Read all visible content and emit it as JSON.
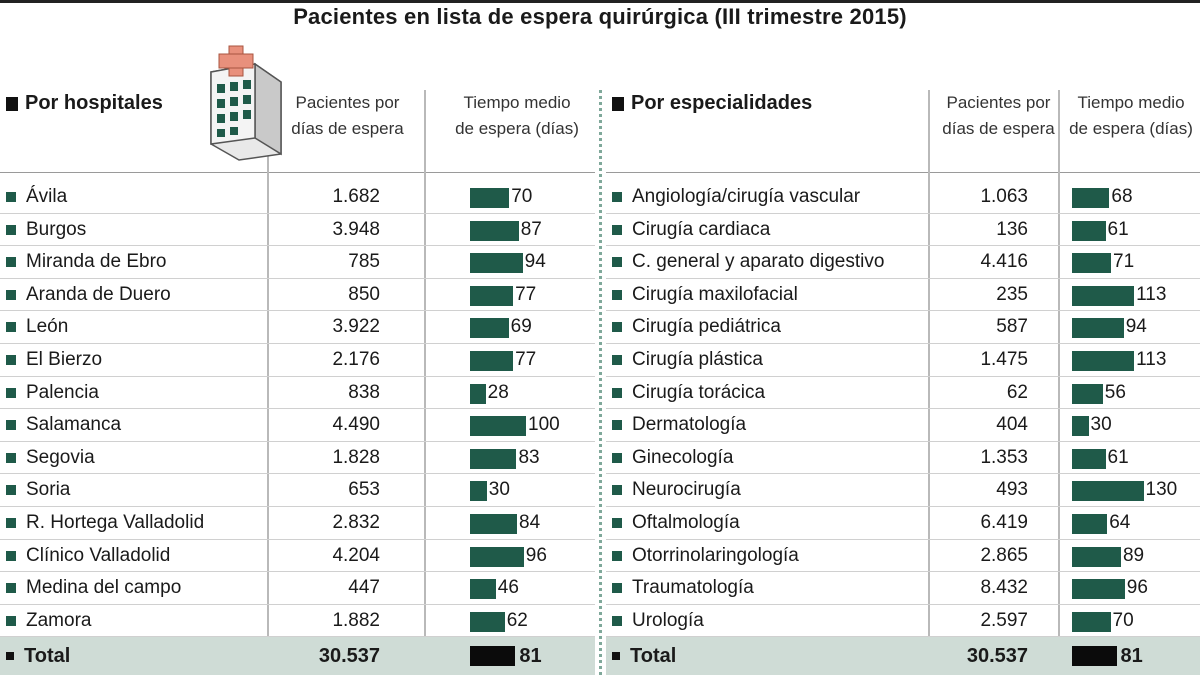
{
  "title": "Pacientes en lista de espera quirúrgica (III trimestre 2015)",
  "colors": {
    "bar": "#1f5a49",
    "total_bar": "#0b0b0b",
    "total_bg": "#cfdcd6",
    "divider": "#7fa89a"
  },
  "icons": {
    "hospital": "hospital-building-icon"
  },
  "chart_data": [
    {
      "type": "table",
      "section_label": "Por hospitales",
      "col_patients": "Pacientes por días de espera",
      "col_wait": "Tiempo medio de espera (días)",
      "rows": [
        {
          "name": "Ávila",
          "patients": "1.682",
          "wait": 70
        },
        {
          "name": "Burgos",
          "patients": "3.948",
          "wait": 87
        },
        {
          "name": "Miranda de Ebro",
          "patients": "785",
          "wait": 94
        },
        {
          "name": "Aranda de Duero",
          "patients": "850",
          "wait": 77
        },
        {
          "name": "León",
          "patients": "3.922",
          "wait": 69
        },
        {
          "name": "El Bierzo",
          "patients": "2.176",
          "wait": 77
        },
        {
          "name": "Palencia",
          "patients": "838",
          "wait": 28
        },
        {
          "name": "Salamanca",
          "patients": "4.490",
          "wait": 100
        },
        {
          "name": "Segovia",
          "patients": "1.828",
          "wait": 83
        },
        {
          "name": "Soria",
          "patients": "653",
          "wait": 30
        },
        {
          "name": "R. Hortega Valladolid",
          "patients": "2.832",
          "wait": 84
        },
        {
          "name": "Clínico Valladolid",
          "patients": "4.204",
          "wait": 96
        },
        {
          "name": "Medina del campo",
          "patients": "447",
          "wait": 46
        },
        {
          "name": "Zamora",
          "patients": "1.882",
          "wait": 62
        }
      ],
      "total": {
        "name": "Total",
        "patients": "30.537",
        "wait": 81
      }
    },
    {
      "type": "table",
      "section_label": "Por especialidades",
      "col_patients": "Pacientes por días de espera",
      "col_wait": "Tiempo medio de espera (días)",
      "rows": [
        {
          "name": "Angiología/cirugía vascular",
          "patients": "1.063",
          "wait": 68
        },
        {
          "name": "Cirugía cardiaca",
          "patients": "136",
          "wait": 61
        },
        {
          "name": "C. general y aparato digestivo",
          "patients": "4.416",
          "wait": 71
        },
        {
          "name": "Cirugía maxilofacial",
          "patients": "235",
          "wait": 113
        },
        {
          "name": "Cirugía pediátrica",
          "patients": "587",
          "wait": 94
        },
        {
          "name": "Cirugía plástica",
          "patients": "1.475",
          "wait": 113
        },
        {
          "name": "Cirugía torácica",
          "patients": "62",
          "wait": 56
        },
        {
          "name": "Dermatología",
          "patients": "404",
          "wait": 30
        },
        {
          "name": "Ginecología",
          "patients": "1.353",
          "wait": 61
        },
        {
          "name": "Neurocirugía",
          "patients": "493",
          "wait": 130
        },
        {
          "name": "Oftalmología",
          "patients": "6.419",
          "wait": 64
        },
        {
          "name": "Otorrinolaringología",
          "patients": "2.865",
          "wait": 89
        },
        {
          "name": "Traumatología",
          "patients": "8.432",
          "wait": 96
        },
        {
          "name": "Urología",
          "patients": "2.597",
          "wait": 70
        }
      ],
      "total": {
        "name": "Total",
        "patients": "30.537",
        "wait": 81
      }
    }
  ]
}
